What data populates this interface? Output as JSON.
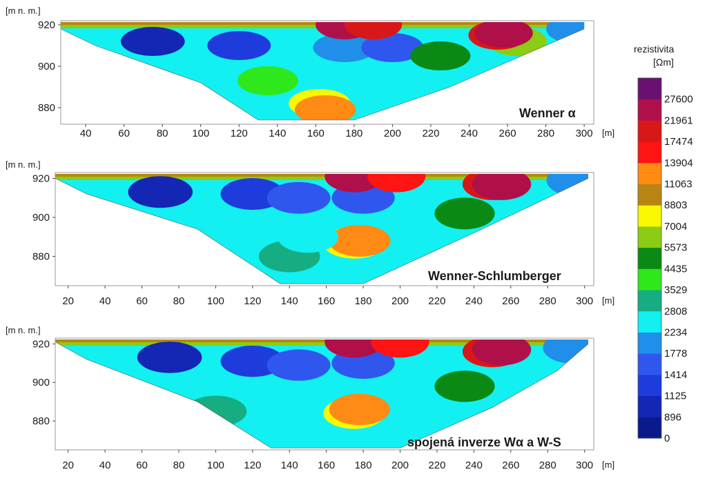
{
  "colors": {
    "scale": [
      "#0a1a8a",
      "#1426b4",
      "#1e3cdc",
      "#2f57ee",
      "#1f8fea",
      "#12f0f2",
      "#16ad82",
      "#2ee81c",
      "#0a8a14",
      "#8ccc14",
      "#f8f800",
      "#b88414",
      "#ff8a14",
      "#ff1414",
      "#d81818",
      "#b0104a",
      "#6a1070"
    ],
    "frame": "#9a9a9a"
  },
  "legend": {
    "title": "rezistivita",
    "unit": "[Ωm]",
    "levels": [
      "27600",
      "21961",
      "17474",
      "13904",
      "11063",
      "8803",
      "7004",
      "5573",
      "4435",
      "3529",
      "2808",
      "2234",
      "1778",
      "1414",
      "1125",
      "896",
      "0"
    ]
  },
  "chart_data": [
    {
      "type": "heatmap",
      "title": "Wenner α",
      "ylabel": "[m n. m.]",
      "xlabel": "[m]",
      "xlim": [
        27,
        305
      ],
      "ylim": [
        872,
        922
      ],
      "xticks": [
        40,
        60,
        80,
        100,
        120,
        140,
        160,
        180,
        200,
        220,
        240,
        260,
        280,
        300
      ],
      "yticks": [
        880,
        900,
        920
      ],
      "xtick_labels": [
        "40",
        "60",
        "80",
        "100",
        "120",
        "140",
        "160",
        "180",
        "200",
        "220",
        "240",
        "260",
        "280",
        "300"
      ],
      "ytick_labels": [
        "880",
        "900",
        "920"
      ],
      "profile": [
        [
          27,
          918
        ],
        [
          45,
          910
        ],
        [
          100,
          892
        ],
        [
          130,
          874
        ],
        [
          180,
          874
        ],
        [
          230,
          890
        ],
        [
          270,
          906
        ],
        [
          300,
          918
        ]
      ],
      "bodies": [
        {
          "x": 75,
          "y": 912,
          "value": 896
        },
        {
          "x": 120,
          "y": 910,
          "value": 1125
        },
        {
          "x": 175,
          "y": 909,
          "value": 1778
        },
        {
          "x": 200,
          "y": 909,
          "value": 1414
        },
        {
          "x": 162,
          "y": 882,
          "value": 7004
        },
        {
          "x": 165,
          "y": 879,
          "value": 11063
        },
        {
          "x": 135,
          "y": 893,
          "value": 3529
        },
        {
          "x": 225,
          "y": 905,
          "value": 4435
        },
        {
          "x": 265,
          "y": 912,
          "value": 5573
        },
        {
          "x": 255,
          "y": 915,
          "value": 17474
        },
        {
          "x": 258,
          "y": 916,
          "value": 21961
        },
        {
          "x": 175,
          "y": 920,
          "value": 21961
        },
        {
          "x": 190,
          "y": 920,
          "value": 17474
        },
        {
          "x": 295,
          "y": 918,
          "value": 1778
        }
      ]
    },
    {
      "type": "heatmap",
      "title": "Wenner-Schlumberger",
      "ylabel": "[m n. m.]",
      "xlabel": "[m]",
      "xlim": [
        13,
        305
      ],
      "ylim": [
        865,
        923
      ],
      "xticks": [
        20,
        40,
        60,
        80,
        100,
        120,
        140,
        160,
        180,
        200,
        220,
        240,
        260,
        280,
        300
      ],
      "yticks": [
        880,
        900,
        920
      ],
      "xtick_labels": [
        "20",
        "40",
        "60",
        "80",
        "100",
        "120",
        "140",
        "160",
        "180",
        "200",
        "220",
        "240",
        "260",
        "280",
        "300"
      ],
      "ytick_labels": [
        "880",
        "900",
        "920"
      ],
      "profile": [
        [
          13,
          920
        ],
        [
          30,
          912
        ],
        [
          90,
          894
        ],
        [
          135,
          866
        ],
        [
          180,
          866
        ],
        [
          240,
          892
        ],
        [
          280,
          910
        ],
        [
          302,
          920
        ]
      ],
      "bodies": [
        {
          "x": 70,
          "y": 913,
          "value": 896
        },
        {
          "x": 120,
          "y": 912,
          "value": 1125
        },
        {
          "x": 145,
          "y": 910,
          "value": 1414
        },
        {
          "x": 180,
          "y": 910,
          "value": 1414
        },
        {
          "x": 175,
          "y": 887,
          "value": 7004
        },
        {
          "x": 178,
          "y": 888,
          "value": 11063
        },
        {
          "x": 140,
          "y": 880,
          "value": 2808
        },
        {
          "x": 150,
          "y": 890,
          "value": 2234
        },
        {
          "x": 235,
          "y": 902,
          "value": 4435
        },
        {
          "x": 250,
          "y": 917,
          "value": 17474
        },
        {
          "x": 255,
          "y": 917,
          "value": 21961
        },
        {
          "x": 175,
          "y": 921,
          "value": 21961
        },
        {
          "x": 198,
          "y": 921,
          "value": 13904
        },
        {
          "x": 295,
          "y": 919,
          "value": 1778
        }
      ]
    },
    {
      "type": "heatmap",
      "title": "spojená inverze Wα a W-S",
      "ylabel": "[m n. m.]",
      "xlabel": "[m]",
      "xlim": [
        13,
        305
      ],
      "ylim": [
        865,
        923
      ],
      "xticks": [
        20,
        40,
        60,
        80,
        100,
        120,
        140,
        160,
        180,
        200,
        220,
        240,
        260,
        280,
        300
      ],
      "yticks": [
        880,
        900,
        920
      ],
      "xtick_labels": [
        "20",
        "40",
        "60",
        "80",
        "100",
        "120",
        "140",
        "160",
        "180",
        "200",
        "220",
        "240",
        "260",
        "280",
        "300"
      ],
      "ytick_labels": [
        "880",
        "900",
        "920"
      ],
      "profile": [
        [
          13,
          921
        ],
        [
          30,
          912
        ],
        [
          90,
          890
        ],
        [
          130,
          866
        ],
        [
          200,
          866
        ],
        [
          250,
          887
        ],
        [
          285,
          906
        ],
        [
          302,
          920
        ]
      ],
      "bodies": [
        {
          "x": 75,
          "y": 913,
          "value": 896
        },
        {
          "x": 120,
          "y": 911,
          "value": 1125
        },
        {
          "x": 145,
          "y": 909,
          "value": 1414
        },
        {
          "x": 180,
          "y": 910,
          "value": 1414
        },
        {
          "x": 130,
          "y": 890,
          "value": 2234
        },
        {
          "x": 100,
          "y": 885,
          "value": 2808
        },
        {
          "x": 175,
          "y": 884,
          "value": 7004
        },
        {
          "x": 178,
          "y": 886,
          "value": 11063
        },
        {
          "x": 235,
          "y": 898,
          "value": 4435
        },
        {
          "x": 250,
          "y": 916,
          "value": 17474
        },
        {
          "x": 255,
          "y": 917,
          "value": 21961
        },
        {
          "x": 175,
          "y": 921,
          "value": 21961
        },
        {
          "x": 200,
          "y": 921,
          "value": 13904
        },
        {
          "x": 293,
          "y": 918,
          "value": 1778
        }
      ]
    }
  ]
}
